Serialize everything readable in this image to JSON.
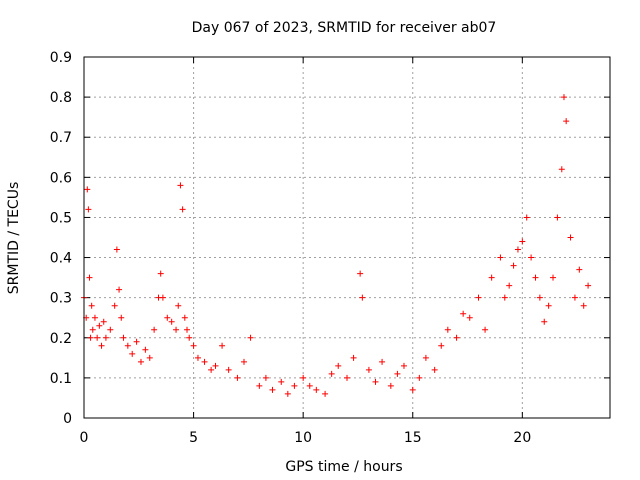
{
  "chart_data": {
    "type": "scatter",
    "title": "Day 067 of 2023, SRMTID for receiver ab07",
    "xlabel": "GPS time / hours",
    "ylabel": "SRMTID / TECUs",
    "xlim": [
      0,
      24
    ],
    "ylim": [
      0,
      0.9
    ],
    "xticks": [
      0,
      5,
      10,
      15,
      20
    ],
    "yticks": [
      0,
      0.1,
      0.2,
      0.3,
      0.4,
      0.5,
      0.6,
      0.7,
      0.8,
      0.9
    ],
    "xtick_labels": [
      "0",
      "5",
      "10",
      "15",
      "20"
    ],
    "ytick_labels": [
      "0",
      "0.1",
      "0.2",
      "0.3",
      "0.4",
      "0.5",
      "0.6",
      "0.7",
      "0.8",
      "0.9"
    ],
    "grid": true,
    "marker": "+",
    "color": "#ff0000",
    "series": [
      {
        "name": "SRMTID",
        "x": [
          0.0,
          0.1,
          0.15,
          0.2,
          0.25,
          0.3,
          0.35,
          0.4,
          0.5,
          0.6,
          0.7,
          0.8,
          0.9,
          1.0,
          1.2,
          1.4,
          1.5,
          1.6,
          1.7,
          1.8,
          2.0,
          2.2,
          2.4,
          2.6,
          2.8,
          3.0,
          3.2,
          3.4,
          3.5,
          3.6,
          3.8,
          4.0,
          4.2,
          4.3,
          4.4,
          4.5,
          4.6,
          4.7,
          4.8,
          5.0,
          5.2,
          5.5,
          5.8,
          6.0,
          6.3,
          6.6,
          7.0,
          7.3,
          7.6,
          8.0,
          8.3,
          8.6,
          9.0,
          9.3,
          9.6,
          10.0,
          10.3,
          10.6,
          11.0,
          11.3,
          11.6,
          12.0,
          12.3,
          12.6,
          12.7,
          13.0,
          13.3,
          13.6,
          14.0,
          14.3,
          14.6,
          15.0,
          15.3,
          15.6,
          16.0,
          16.3,
          16.6,
          17.0,
          17.3,
          17.6,
          18.0,
          18.3,
          18.6,
          19.0,
          19.2,
          19.4,
          19.6,
          19.8,
          20.0,
          20.2,
          20.4,
          20.6,
          20.8,
          21.0,
          21.2,
          21.4,
          21.6,
          21.8,
          21.9,
          22.0,
          22.2,
          22.4,
          22.6,
          22.8,
          23.0
        ],
        "y": [
          0.3,
          0.25,
          0.57,
          0.52,
          0.35,
          0.2,
          0.28,
          0.22,
          0.25,
          0.2,
          0.23,
          0.18,
          0.24,
          0.2,
          0.22,
          0.28,
          0.42,
          0.32,
          0.25,
          0.2,
          0.18,
          0.16,
          0.19,
          0.14,
          0.17,
          0.15,
          0.22,
          0.3,
          0.36,
          0.3,
          0.25,
          0.24,
          0.22,
          0.28,
          0.58,
          0.52,
          0.25,
          0.22,
          0.2,
          0.18,
          0.15,
          0.14,
          0.12,
          0.13,
          0.18,
          0.12,
          0.1,
          0.14,
          0.2,
          0.08,
          0.1,
          0.07,
          0.09,
          0.06,
          0.08,
          0.1,
          0.08,
          0.07,
          0.06,
          0.11,
          0.13,
          0.1,
          0.15,
          0.36,
          0.3,
          0.12,
          0.09,
          0.14,
          0.08,
          0.11,
          0.13,
          0.07,
          0.1,
          0.15,
          0.12,
          0.18,
          0.22,
          0.2,
          0.26,
          0.25,
          0.3,
          0.22,
          0.35,
          0.4,
          0.3,
          0.33,
          0.38,
          0.42,
          0.44,
          0.5,
          0.4,
          0.35,
          0.3,
          0.24,
          0.28,
          0.35,
          0.5,
          0.62,
          0.8,
          0.74,
          0.45,
          0.3,
          0.37,
          0.28,
          0.33
        ]
      }
    ]
  }
}
